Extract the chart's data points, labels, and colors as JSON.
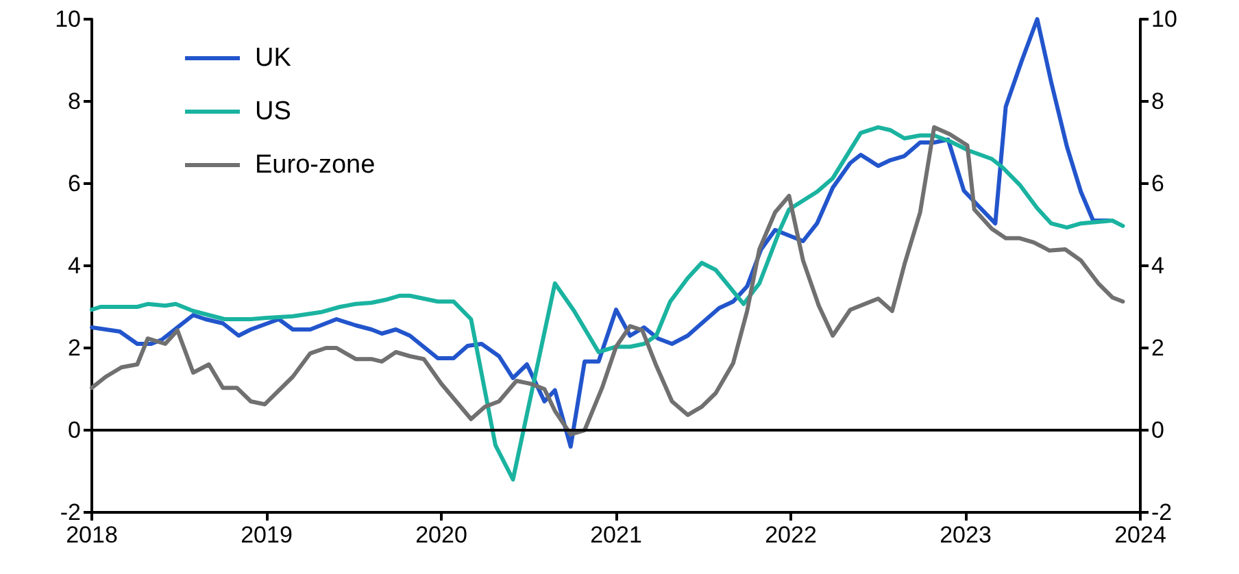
{
  "chart_data": {
    "type": "line",
    "xlim": [
      2018,
      2024
    ],
    "xticks": [
      2018,
      2019,
      2020,
      2021,
      2022,
      2023,
      2024
    ],
    "ylim": [
      -2,
      10
    ],
    "yticks": [
      -2,
      0,
      2,
      4,
      6,
      8,
      10
    ],
    "y2lim": [
      -2,
      10
    ],
    "y2ticks": [
      -2,
      0,
      2,
      4,
      6,
      8,
      10
    ],
    "grid": false,
    "legend": "top left",
    "ref_lines": [
      {
        "axis": "y",
        "value": 0,
        "color": "#000000"
      }
    ],
    "series": [
      {
        "name": "UK",
        "color": "#2255cc",
        "x": [
          2018,
          2018.16,
          2018.26,
          2018.34,
          2018.4,
          2018.58,
          2018.65,
          2018.75,
          2018.84,
          2018.91,
          2019.07,
          2019.15,
          2019.25,
          2019.4,
          2019.51,
          2019.6,
          2019.66,
          2019.74,
          2019.82,
          2019.98,
          2020.07,
          2020.15,
          2020.23,
          2020.33,
          2020.41,
          2020.49,
          2020.59,
          2020.65,
          2020.74,
          2020.82,
          2020.9,
          2021.0,
          2021.08,
          2021.16,
          2021.24,
          2021.32,
          2021.41,
          2021.49,
          2021.59,
          2021.67,
          2021.75,
          2021.83,
          2021.91,
          2022.07,
          2022.15,
          2022.24,
          2022.34,
          2022.4,
          2022.5,
          2022.57,
          2022.65,
          2022.74,
          2022.82,
          2022.9,
          2022.99,
          2023.07,
          2023.17,
          2023.23,
          2023.32,
          2023.41,
          2023.49,
          2023.58,
          2023.66,
          2023.73,
          2023.82
        ],
        "values": [
          2.5,
          2.4,
          2.1,
          2.1,
          2.2,
          2.8,
          2.7,
          2.6,
          2.3,
          2.45,
          2.7,
          2.45,
          2.45,
          2.7,
          2.55,
          2.45,
          2.35,
          2.45,
          2.3,
          1.75,
          1.75,
          2.05,
          2.1,
          1.8,
          1.27,
          1.6,
          0.7,
          0.97,
          -0.4,
          1.67,
          1.67,
          2.93,
          2.3,
          2.5,
          2.23,
          2.1,
          2.3,
          2.6,
          2.97,
          3.13,
          3.5,
          4.4,
          4.87,
          4.6,
          5.03,
          5.9,
          6.5,
          6.7,
          6.43,
          6.57,
          6.67,
          7.0,
          7.0,
          7.07,
          5.83,
          5.47,
          5.03,
          7.87,
          8.97,
          10,
          8.47,
          6.9,
          5.8,
          5.1,
          5.1
        ]
      },
      {
        "name": "US",
        "color": "#1ab3a0",
        "x": [
          2018,
          2018.05,
          2018.26,
          2018.32,
          2018.42,
          2018.48,
          2018.58,
          2018.67,
          2018.76,
          2018.91,
          2018.99,
          2019.15,
          2019.31,
          2019.42,
          2019.51,
          2019.6,
          2019.68,
          2019.76,
          2019.82,
          2019.9,
          2019.98,
          2020.07,
          2020.17,
          2020.31,
          2020.41,
          2020.65,
          2020.76,
          2020.9,
          2021.0,
          2021.08,
          2021.16,
          2021.23,
          2021.31,
          2021.41,
          2021.49,
          2021.57,
          2021.73,
          2021.82,
          2021.94,
          2021.99,
          2022.15,
          2022.24,
          2022.4,
          2022.5,
          2022.57,
          2022.65,
          2022.74,
          2022.82,
          2022.91,
          2023.02,
          2023.15,
          2023.21,
          2023.31,
          2023.41,
          2023.49,
          2023.58,
          2023.66,
          2023.84,
          2023.9
        ],
        "values": [
          2.93,
          3.0,
          3.0,
          3.07,
          3.03,
          3.07,
          2.9,
          2.8,
          2.7,
          2.7,
          2.73,
          2.77,
          2.87,
          3.0,
          3.07,
          3.1,
          3.17,
          3.27,
          3.27,
          3.2,
          3.13,
          3.13,
          2.7,
          -0.37,
          -1.2,
          3.57,
          2.9,
          1.9,
          2.03,
          2.03,
          2.1,
          2.3,
          3.13,
          3.7,
          4.07,
          3.9,
          3.07,
          3.57,
          4.9,
          5.37,
          5.8,
          6.13,
          7.23,
          7.37,
          7.3,
          7.1,
          7.17,
          7.17,
          7.03,
          6.8,
          6.6,
          6.4,
          5.97,
          5.4,
          5.03,
          4.93,
          5.03,
          5.1,
          4.97
        ]
      },
      {
        "name": "Euro-zone",
        "color": "#707070",
        "x": [
          2018,
          2018.08,
          2018.17,
          2018.26,
          2018.32,
          2018.42,
          2018.49,
          2018.58,
          2018.67,
          2018.75,
          2018.83,
          2018.91,
          2018.99,
          2019.15,
          2019.25,
          2019.34,
          2019.4,
          2019.51,
          2019.6,
          2019.66,
          2019.74,
          2019.82,
          2019.9,
          2020.0,
          2020.17,
          2020.25,
          2020.33,
          2020.43,
          2020.51,
          2020.59,
          2020.65,
          2020.74,
          2020.82,
          2020.92,
          2021.0,
          2021.08,
          2021.15,
          2021.23,
          2021.32,
          2021.41,
          2021.49,
          2021.57,
          2021.67,
          2021.75,
          2021.82,
          2021.91,
          2021.99,
          2022.07,
          2022.16,
          2022.24,
          2022.34,
          2022.5,
          2022.58,
          2022.65,
          2022.74,
          2022.82,
          2022.91,
          2023.01,
          2023.05,
          2023.15,
          2023.23,
          2023.31,
          2023.39,
          2023.48,
          2023.57,
          2023.66,
          2023.76,
          2023.84,
          2023.9
        ],
        "values": [
          1.03,
          1.3,
          1.53,
          1.6,
          2.23,
          2.1,
          2.43,
          1.4,
          1.6,
          1.03,
          1.03,
          0.7,
          0.63,
          1.3,
          1.87,
          2.0,
          2.0,
          1.73,
          1.73,
          1.67,
          1.9,
          1.8,
          1.73,
          1.13,
          0.27,
          0.57,
          0.7,
          1.2,
          1.13,
          1.0,
          0.47,
          -0.1,
          0.0,
          1.03,
          2.03,
          2.53,
          2.43,
          1.57,
          0.7,
          0.37,
          0.57,
          0.9,
          1.63,
          2.9,
          4.4,
          5.3,
          5.7,
          4.13,
          3.03,
          2.3,
          2.93,
          3.2,
          2.9,
          4.03,
          5.3,
          7.37,
          7.2,
          6.93,
          5.37,
          4.9,
          4.67,
          4.67,
          4.57,
          4.37,
          4.4,
          4.13,
          3.57,
          3.23,
          3.13
        ]
      }
    ]
  }
}
